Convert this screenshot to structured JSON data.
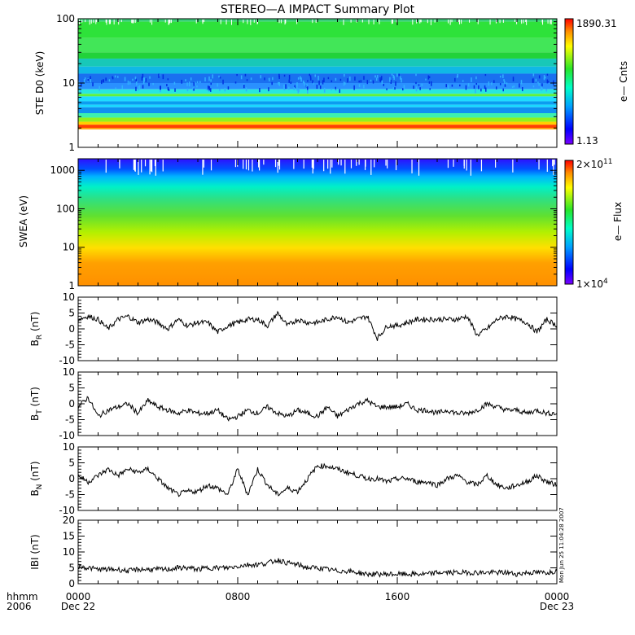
{
  "title": "STEREO—A IMPACT Summary Plot",
  "footer": {
    "time_label": "hhmm",
    "year_label": "2006",
    "timestamp": "Mon Jun 25 11:04:28 2007"
  },
  "x_axis": {
    "ticks": [
      {
        "label": "0000",
        "sub": "Dec 22",
        "hour": 0
      },
      {
        "label": "0800",
        "sub": "",
        "hour": 8
      },
      {
        "label": "1600",
        "sub": "",
        "hour": 16
      },
      {
        "label": "0000",
        "sub": "Dec 23",
        "hour": 24
      }
    ]
  },
  "chart_data": [
    {
      "type": "heatmap",
      "panel": "ste",
      "ylabel": "STE D0 (keV)",
      "yscale": "log",
      "ylim": [
        1,
        100
      ],
      "yticks": [
        "1",
        "10",
        "100"
      ],
      "xlim_hours": [
        0,
        24
      ],
      "colorbar": {
        "label": "e— Cnts",
        "max_label": "1890.31",
        "min_label": "1.13",
        "max": 1890.31,
        "min": 1.13
      }
    },
    {
      "type": "heatmap",
      "panel": "swea",
      "ylabel": "SWEA (eV)",
      "yscale": "log",
      "ylim": [
        1,
        2000
      ],
      "yticks": [
        "1",
        "10",
        "100",
        "1000"
      ],
      "xlim_hours": [
        0,
        24
      ],
      "colorbar": {
        "label": "e— Flux",
        "max_label": "2×10",
        "max_exp": "11",
        "min_label": "1×10",
        "min_exp": "4",
        "max": 200000000000.0,
        "min": 10000.0
      }
    },
    {
      "type": "line",
      "panel": "br",
      "ylabel_main": "B",
      "ylabel_sub": "R",
      "ylabel_unit": "(nT)",
      "ylim": [
        -10,
        10
      ],
      "yticks": [
        "-10",
        "-5",
        "0",
        "5",
        "10"
      ],
      "x_hours": [
        0,
        0.5,
        1,
        1.5,
        2,
        2.5,
        3,
        3.5,
        4,
        4.5,
        5,
        5.5,
        6,
        6.5,
        7,
        7.5,
        8,
        8.5,
        9,
        9.5,
        10,
        10.5,
        11,
        11.5,
        12,
        12.5,
        13,
        13.5,
        14,
        14.5,
        15,
        15.5,
        16,
        16.5,
        17,
        17.5,
        18,
        18.5,
        19,
        19.5,
        20,
        20.5,
        21,
        21.5,
        22,
        22.5,
        23,
        23.5,
        24
      ],
      "values": [
        3,
        4,
        3,
        0,
        3,
        4,
        2,
        3,
        2,
        0,
        3,
        1,
        2,
        2,
        -1,
        1,
        2,
        3,
        3,
        1,
        5,
        1,
        3,
        2,
        2,
        3,
        4,
        2,
        3,
        4,
        -3,
        1,
        1,
        2,
        3,
        3,
        3,
        3,
        3,
        4,
        -2,
        0,
        3,
        4,
        3,
        2,
        -1,
        3,
        1
      ]
    },
    {
      "type": "line",
      "panel": "bt",
      "ylabel_main": "B",
      "ylabel_sub": "T",
      "ylabel_unit": "(nT)",
      "ylim": [
        -10,
        10
      ],
      "yticks": [
        "-10",
        "-5",
        "0",
        "5",
        "10"
      ],
      "x_hours": [
        0,
        0.5,
        1,
        1.5,
        2,
        2.5,
        3,
        3.5,
        4,
        4.5,
        5,
        5.5,
        6,
        6.5,
        7,
        7.5,
        8,
        8.5,
        9,
        9.5,
        10,
        10.5,
        11,
        11.5,
        12,
        12.5,
        13,
        13.5,
        14,
        14.5,
        15,
        15.5,
        16,
        16.5,
        17,
        17.5,
        18,
        18.5,
        19,
        19.5,
        20,
        20.5,
        21,
        21.5,
        22,
        22.5,
        23,
        23.5,
        24
      ],
      "values": [
        -1,
        2,
        -4,
        -2,
        -1,
        0,
        -3,
        1,
        -1,
        -2,
        -3,
        -2,
        -3,
        -3,
        -2,
        -5,
        -4,
        -2,
        -3,
        -1,
        -3,
        -4,
        -2,
        -3,
        -4,
        -1,
        -4,
        -2,
        0,
        1,
        -1,
        -1,
        -1,
        0,
        -2,
        -2,
        -3,
        -2,
        -3,
        -3,
        -2,
        0,
        -1,
        -2,
        -2,
        -3,
        -2,
        -3,
        -3
      ]
    },
    {
      "type": "line",
      "panel": "bn",
      "ylabel_main": "B",
      "ylabel_sub": "N",
      "ylabel_unit": "(nT)",
      "ylim": [
        -10,
        10
      ],
      "yticks": [
        "-10",
        "-5",
        "0",
        "5",
        "10"
      ],
      "x_hours": [
        0,
        0.5,
        1,
        1.5,
        2,
        2.5,
        3,
        3.5,
        4,
        4.5,
        5,
        5.5,
        6,
        6.5,
        7,
        7.5,
        8,
        8.5,
        9,
        9.5,
        10,
        10.5,
        11,
        11.5,
        12,
        12.5,
        13,
        13.5,
        14,
        14.5,
        15,
        15.5,
        16,
        16.5,
        17,
        17.5,
        18,
        18.5,
        19,
        19.5,
        20,
        20.5,
        21,
        21.5,
        22,
        22.5,
        23,
        23.5,
        24
      ],
      "values": [
        1,
        -1,
        1,
        3,
        1,
        3,
        2,
        3,
        0,
        -3,
        -5,
        -4,
        -4,
        -2,
        -3,
        -5,
        3,
        -5,
        3,
        -2,
        -5,
        -3,
        -4,
        0,
        4,
        4,
        3,
        2,
        1,
        0,
        0,
        -1,
        0,
        0,
        -1,
        -1,
        -2,
        0,
        1,
        -1,
        -2,
        1,
        -2,
        -3,
        -2,
        -1,
        1,
        -1,
        -2
      ]
    },
    {
      "type": "line",
      "panel": "b",
      "ylabel": "IBI (nT)",
      "ylim": [
        0,
        20
      ],
      "yticks": [
        "0",
        "5",
        "10",
        "15",
        "20"
      ],
      "x_hours": [
        0,
        0.5,
        1,
        1.5,
        2,
        2.5,
        3,
        3.5,
        4,
        4.5,
        5,
        5.5,
        6,
        6.5,
        7,
        7.5,
        8,
        8.5,
        9,
        9.5,
        10,
        10.5,
        11,
        11.5,
        12,
        12.5,
        13,
        13.5,
        14,
        14.5,
        15,
        15.5,
        16,
        16.5,
        17,
        17.5,
        18,
        18.5,
        19,
        19.5,
        20,
        20.5,
        21,
        21.5,
        22,
        22.5,
        23,
        23.5,
        24
      ],
      "values": [
        5.5,
        5,
        4.5,
        4.5,
        4.5,
        4,
        4.5,
        4.5,
        4.5,
        4.5,
        5,
        5,
        4.5,
        5,
        5,
        5,
        5.5,
        6,
        6,
        6.5,
        7.5,
        6.5,
        6,
        5,
        5,
        4.5,
        4,
        4,
        3.5,
        3,
        3,
        3,
        3,
        3,
        3,
        3,
        3.5,
        3.5,
        3.5,
        3.5,
        3.5,
        3.5,
        3.5,
        3.5,
        3,
        3.5,
        3.5,
        3.5,
        4
      ]
    }
  ]
}
